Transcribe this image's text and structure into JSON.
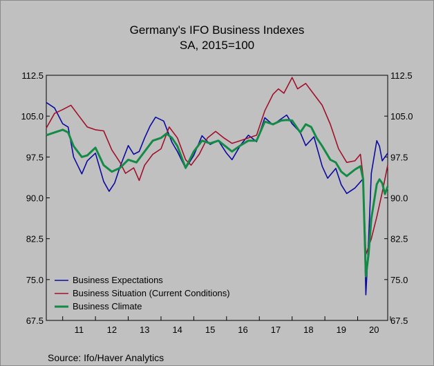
{
  "chart_data": {
    "type": "line",
    "title": "Germany's IFO Business Indexes",
    "subtitle": "SA, 2015=100",
    "source": "Source:   Ifo/Haver Analytics",
    "xlabel": "",
    "ylabel": "",
    "x_start": "2010-07",
    "x_end": "2020-12",
    "x_ticks": [
      "11",
      "12",
      "13",
      "14",
      "15",
      "16",
      "17",
      "18",
      "19",
      "20"
    ],
    "y_ticks": [
      "112.5",
      "105.0",
      "97.5",
      "90.0",
      "82.5",
      "75.0",
      "67.5"
    ],
    "ylim": [
      67.5,
      112.5
    ],
    "grid": false,
    "legend_position": "bottom-left",
    "series": [
      {
        "name": "Business Expectations",
        "color": "#0a0aa0",
        "points": [
          [
            "2010-07",
            107.5
          ],
          [
            "2010-10",
            106.5
          ],
          [
            "2011-01",
            103.6
          ],
          [
            "2011-03",
            103.0
          ],
          [
            "2011-05",
            97.5
          ],
          [
            "2011-08",
            94.4
          ],
          [
            "2011-10",
            96.8
          ],
          [
            "2012-01",
            98.2
          ],
          [
            "2012-04",
            93.0
          ],
          [
            "2012-06",
            91.2
          ],
          [
            "2012-08",
            92.7
          ],
          [
            "2012-10",
            95.7
          ],
          [
            "2013-01",
            99.6
          ],
          [
            "2013-03",
            98.0
          ],
          [
            "2013-05",
            98.5
          ],
          [
            "2013-07",
            101.0
          ],
          [
            "2013-09",
            103.2
          ],
          [
            "2013-11",
            104.8
          ],
          [
            "2014-02",
            104.1
          ],
          [
            "2014-05",
            100.2
          ],
          [
            "2014-07",
            98.5
          ],
          [
            "2014-10",
            95.4
          ],
          [
            "2015-01",
            97.8
          ],
          [
            "2015-04",
            101.4
          ],
          [
            "2015-07",
            99.8
          ],
          [
            "2015-10",
            100.5
          ],
          [
            "2016-01",
            98.2
          ],
          [
            "2016-03",
            97.0
          ],
          [
            "2016-06",
            99.6
          ],
          [
            "2016-09",
            101.5
          ],
          [
            "2016-12",
            100.3
          ],
          [
            "2017-03",
            104.7
          ],
          [
            "2017-06",
            103.4
          ],
          [
            "2017-09",
            104.5
          ],
          [
            "2017-11",
            105.2
          ],
          [
            "2018-01",
            103.6
          ],
          [
            "2018-04",
            102.0
          ],
          [
            "2018-06",
            99.6
          ],
          [
            "2018-09",
            101.2
          ],
          [
            "2018-12",
            95.8
          ],
          [
            "2019-02",
            93.6
          ],
          [
            "2019-05",
            95.4
          ],
          [
            "2019-07",
            92.4
          ],
          [
            "2019-09",
            90.8
          ],
          [
            "2019-12",
            91.8
          ],
          [
            "2020-03",
            93.5
          ],
          [
            "2020-04",
            72.2
          ],
          [
            "2020-05",
            82.0
          ],
          [
            "2020-06",
            94.5
          ],
          [
            "2020-08",
            100.5
          ],
          [
            "2020-09",
            99.5
          ],
          [
            "2020-10",
            96.8
          ],
          [
            "2020-12",
            98.2
          ]
        ]
      },
      {
        "name": "Business Situation (Current Conditions)",
        "color": "#a0102a",
        "points": [
          [
            "2010-07",
            102.8
          ],
          [
            "2010-10",
            105.5
          ],
          [
            "2011-01",
            106.2
          ],
          [
            "2011-04",
            107.0
          ],
          [
            "2011-07",
            105.0
          ],
          [
            "2011-10",
            103.0
          ],
          [
            "2012-01",
            102.5
          ],
          [
            "2012-04",
            102.3
          ],
          [
            "2012-07",
            98.8
          ],
          [
            "2012-10",
            96.5
          ],
          [
            "2012-12",
            94.5
          ],
          [
            "2013-03",
            95.5
          ],
          [
            "2013-05",
            93.2
          ],
          [
            "2013-07",
            96.0
          ],
          [
            "2013-10",
            98.0
          ],
          [
            "2014-01",
            99.0
          ],
          [
            "2014-04",
            103.0
          ],
          [
            "2014-07",
            101.0
          ],
          [
            "2014-10",
            97.0
          ],
          [
            "2014-12",
            96.0
          ],
          [
            "2015-03",
            98.0
          ],
          [
            "2015-06",
            101.0
          ],
          [
            "2015-09",
            102.2
          ],
          [
            "2015-12",
            101.0
          ],
          [
            "2016-03",
            100.0
          ],
          [
            "2016-06",
            100.5
          ],
          [
            "2016-09",
            101.0
          ],
          [
            "2016-12",
            101.5
          ],
          [
            "2017-03",
            106.0
          ],
          [
            "2017-06",
            109.0
          ],
          [
            "2017-08",
            110.0
          ],
          [
            "2017-10",
            109.2
          ],
          [
            "2018-01",
            112.1
          ],
          [
            "2018-03",
            110.0
          ],
          [
            "2018-06",
            111.0
          ],
          [
            "2018-09",
            109.0
          ],
          [
            "2018-12",
            107.0
          ],
          [
            "2019-03",
            103.5
          ],
          [
            "2019-06",
            99.0
          ],
          [
            "2019-09",
            96.5
          ],
          [
            "2019-12",
            96.8
          ],
          [
            "2020-02",
            98.0
          ],
          [
            "2020-03",
            94.0
          ],
          [
            "2020-04",
            79.6
          ],
          [
            "2020-06",
            82.5
          ],
          [
            "2020-08",
            86.5
          ],
          [
            "2020-10",
            91.0
          ],
          [
            "2020-12",
            96.0
          ]
        ]
      },
      {
        "name": "Business Climate",
        "color": "#138a45",
        "points": [
          [
            "2010-07",
            101.5
          ],
          [
            "2010-10",
            102.0
          ],
          [
            "2011-01",
            102.5
          ],
          [
            "2011-03",
            102.0
          ],
          [
            "2011-05",
            99.5
          ],
          [
            "2011-08",
            97.5
          ],
          [
            "2011-10",
            97.8
          ],
          [
            "2012-01",
            99.2
          ],
          [
            "2012-04",
            96.0
          ],
          [
            "2012-07",
            94.8
          ],
          [
            "2012-10",
            95.5
          ],
          [
            "2013-01",
            97.0
          ],
          [
            "2013-04",
            96.5
          ],
          [
            "2013-07",
            98.5
          ],
          [
            "2013-10",
            100.5
          ],
          [
            "2014-01",
            101.0
          ],
          [
            "2014-03",
            101.8
          ],
          [
            "2014-05",
            101.0
          ],
          [
            "2014-07",
            99.5
          ],
          [
            "2014-10",
            95.5
          ],
          [
            "2015-01",
            98.5
          ],
          [
            "2015-04",
            100.5
          ],
          [
            "2015-07",
            100.0
          ],
          [
            "2015-10",
            100.5
          ],
          [
            "2016-01",
            99.3
          ],
          [
            "2016-03",
            98.5
          ],
          [
            "2016-06",
            99.6
          ],
          [
            "2016-09",
            100.5
          ],
          [
            "2016-12",
            100.5
          ],
          [
            "2017-03",
            104.0
          ],
          [
            "2017-06",
            103.5
          ],
          [
            "2017-09",
            104.2
          ],
          [
            "2017-11",
            104.3
          ],
          [
            "2018-01",
            104.2
          ],
          [
            "2018-04",
            102.0
          ],
          [
            "2018-06",
            103.5
          ],
          [
            "2018-08",
            103.0
          ],
          [
            "2018-10",
            101.0
          ],
          [
            "2018-12",
            99.5
          ],
          [
            "2019-03",
            97.0
          ],
          [
            "2019-05",
            96.5
          ],
          [
            "2019-07",
            94.8
          ],
          [
            "2019-09",
            94.0
          ],
          [
            "2019-12",
            95.2
          ],
          [
            "2020-02",
            95.8
          ],
          [
            "2020-03",
            93.5
          ],
          [
            "2020-04",
            75.6
          ],
          [
            "2020-05",
            79.6
          ],
          [
            "2020-06",
            86.2
          ],
          [
            "2020-08",
            92.5
          ],
          [
            "2020-09",
            93.4
          ],
          [
            "2020-10",
            92.7
          ],
          [
            "2020-11",
            90.7
          ],
          [
            "2020-12",
            92.1
          ]
        ]
      }
    ]
  }
}
